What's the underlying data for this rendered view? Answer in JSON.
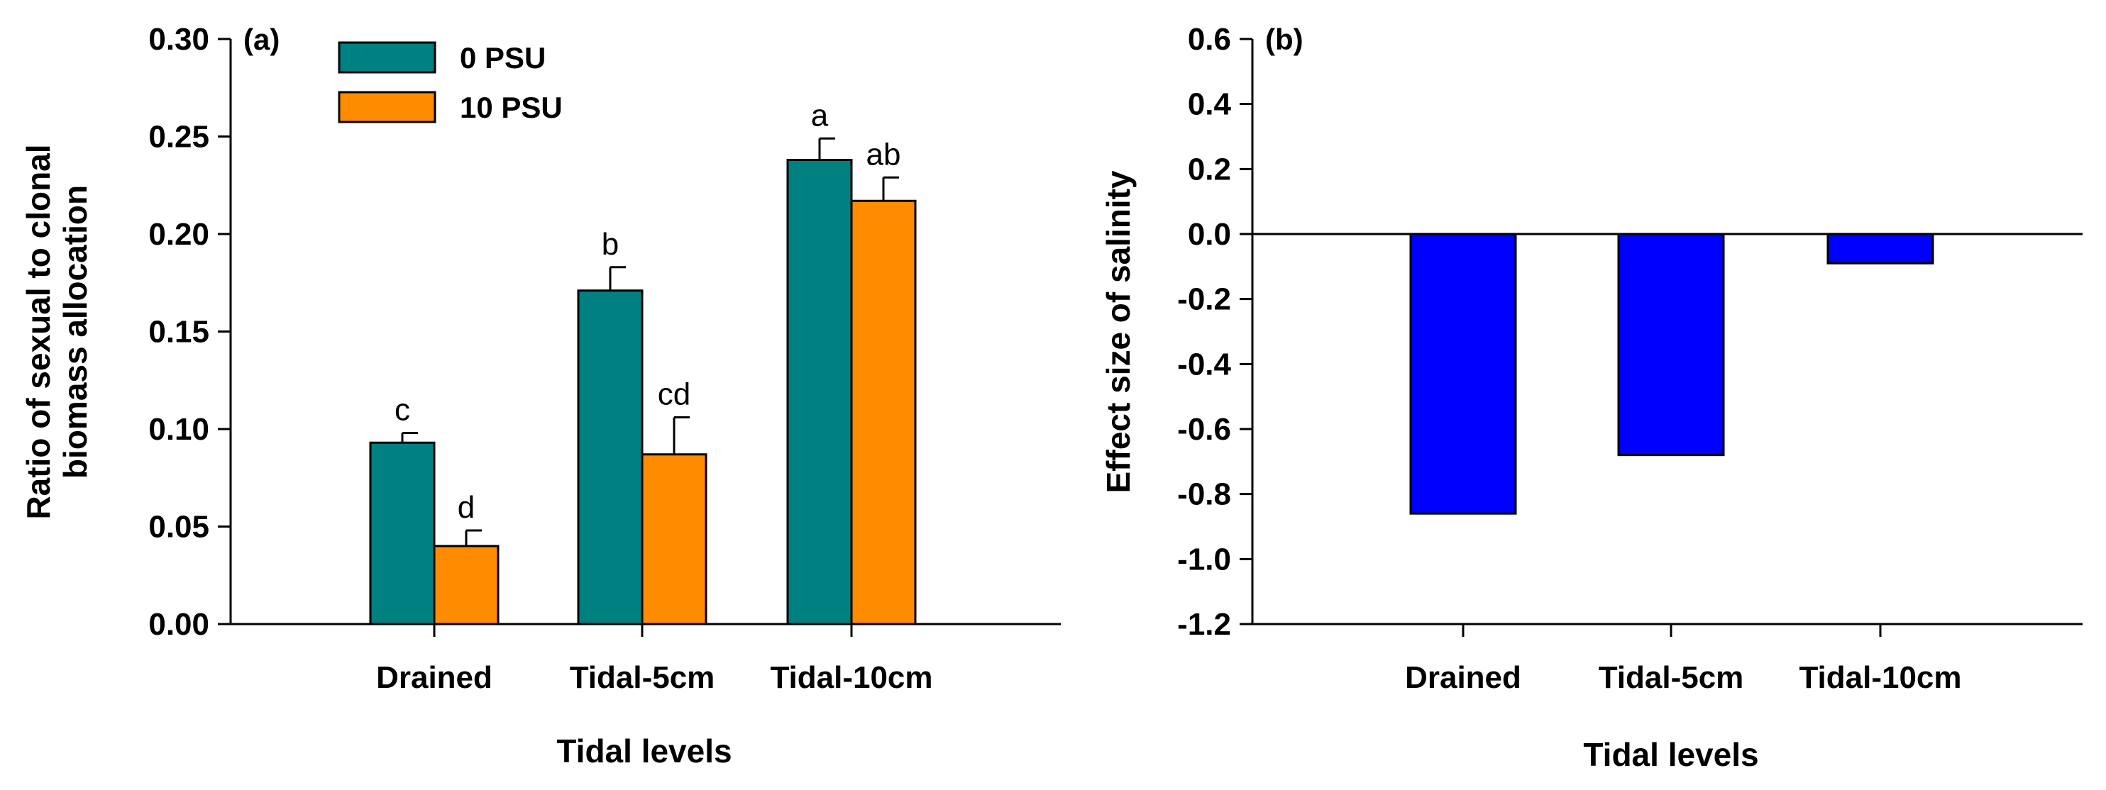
{
  "chart_data": [
    {
      "type": "bar",
      "panel_label": "(a)",
      "categories": [
        "Drained",
        "Tidal-5cm",
        "Tidal-10cm"
      ],
      "series": [
        {
          "name": "0 PSU",
          "color": "#008080",
          "values": [
            0.093,
            0.171,
            0.238
          ],
          "errors": [
            0.005,
            0.012,
            0.011
          ],
          "letters": [
            "c",
            "b",
            "a"
          ]
        },
        {
          "name": "10 PSU",
          "color": "#FF8C00",
          "values": [
            0.04,
            0.087,
            0.217
          ],
          "errors": [
            0.008,
            0.019,
            0.012
          ],
          "letters": [
            "d",
            "cd",
            "ab"
          ]
        }
      ],
      "xlabel": "Tidal levels",
      "ylabel_lines": [
        "Ratio of sexual to clonal",
        "biomass allocation"
      ],
      "ylim": [
        0,
        0.3
      ],
      "yticks": [
        "0.00",
        "0.05",
        "0.10",
        "0.15",
        "0.20",
        "0.25",
        "0.30"
      ],
      "legend_position": "top-left"
    },
    {
      "type": "bar",
      "panel_label": "(b)",
      "categories": [
        "Drained",
        "Tidal-5cm",
        "Tidal-10cm"
      ],
      "series": [
        {
          "name": "Effect size of salinity",
          "color": "#0000FF",
          "values": [
            -0.86,
            -0.68,
            -0.09
          ]
        }
      ],
      "xlabel": "Tidal levels",
      "ylabel": "Effect size of salinity",
      "ylim": [
        -1.2,
        0.6
      ],
      "yticks": [
        "-1.2",
        "-1.0",
        "-0.8",
        "-0.6",
        "-0.4",
        "-0.2",
        "0.0",
        "0.2",
        "0.4",
        "0.6"
      ]
    }
  ]
}
